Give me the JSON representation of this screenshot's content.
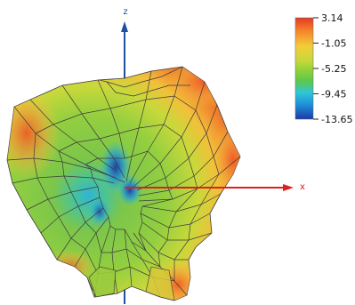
{
  "chart_data": {
    "type": "3d-surface",
    "description_kind": "3D radiation pattern surface (gain)",
    "axes": {
      "x_label": "x",
      "z_label": "z"
    },
    "colorbar": {
      "ticks": [
        "3.14",
        "-1.05",
        "-5.25",
        "-9.45",
        "-13.65"
      ],
      "range": [
        -13.65,
        3.14
      ],
      "colormap": [
        "#1c3aa6",
        "#1f8fd8",
        "#2fc6d8",
        "#5fc84a",
        "#8fd13a",
        "#c7d93a",
        "#f3cc3a",
        "#f58a2a",
        "#e63a22"
      ]
    },
    "grid": "mesh",
    "legend_position": "top-right"
  }
}
